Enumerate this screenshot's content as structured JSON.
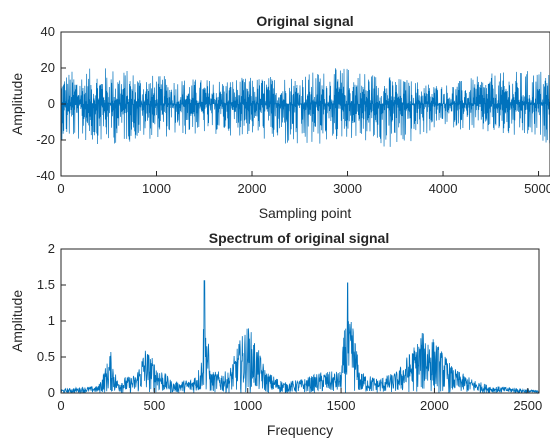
{
  "chart_data": [
    {
      "type": "line",
      "title": "Original signal",
      "xlabel": "Sampling point",
      "ylabel": "Amplitude",
      "xlim": [
        0,
        5120
      ],
      "ylim": [
        -40,
        40
      ],
      "xticks": [
        0,
        1000,
        2000,
        3000,
        4000,
        5000
      ],
      "yticks": [
        -40,
        -20,
        0,
        20,
        40
      ],
      "grid": false,
      "series_color": "#0072BD",
      "envelope": [
        {
          "x": 0,
          "min": -20,
          "max": 18
        },
        {
          "x": 500,
          "min": -23,
          "max": 21
        },
        {
          "x": 1000,
          "min": -19,
          "max": 16
        },
        {
          "x": 1500,
          "min": -17,
          "max": 14
        },
        {
          "x": 2000,
          "min": -18,
          "max": 15
        },
        {
          "x": 2500,
          "min": -27,
          "max": 17
        },
        {
          "x": 3000,
          "min": -19,
          "max": 21
        },
        {
          "x": 3500,
          "min": -27,
          "max": 15
        },
        {
          "x": 4000,
          "min": -12,
          "max": 11
        },
        {
          "x": 4500,
          "min": -18,
          "max": 17
        },
        {
          "x": 5120,
          "min": -22,
          "max": 20
        }
      ]
    },
    {
      "type": "line",
      "title": "Spectrum of original signal",
      "xlabel": "Frequency",
      "ylabel": "Amplitude",
      "xlim": [
        0,
        2560
      ],
      "ylim": [
        0,
        2
      ],
      "xticks": [
        0,
        500,
        1000,
        1500,
        2000,
        2500
      ],
      "yticks": [
        0,
        0.5,
        1,
        1.5,
        2
      ],
      "ytick_labels": [
        "0",
        "0.5",
        "1",
        "1.5",
        "2"
      ],
      "grid": false,
      "series_color": "#0072BD",
      "x": [
        0,
        100,
        200,
        250,
        265,
        300,
        400,
        450,
        500,
        600,
        700,
        750,
        768,
        800,
        900,
        950,
        1000,
        1030,
        1100,
        1200,
        1300,
        1400,
        1500,
        1536,
        1600,
        1700,
        1800,
        1900,
        1950,
        2000,
        2100,
        2200,
        2300,
        2400,
        2500,
        2560
      ],
      "values": [
        0.05,
        0.08,
        0.1,
        0.45,
        0.6,
        0.2,
        0.25,
        0.65,
        0.45,
        0.15,
        0.2,
        0.4,
        1.56,
        0.3,
        0.3,
        0.7,
        0.95,
        0.8,
        0.3,
        0.15,
        0.2,
        0.3,
        0.3,
        1.53,
        0.3,
        0.2,
        0.3,
        0.7,
        0.9,
        0.75,
        0.35,
        0.2,
        0.1,
        0.08,
        0.05,
        0.03
      ]
    }
  ]
}
